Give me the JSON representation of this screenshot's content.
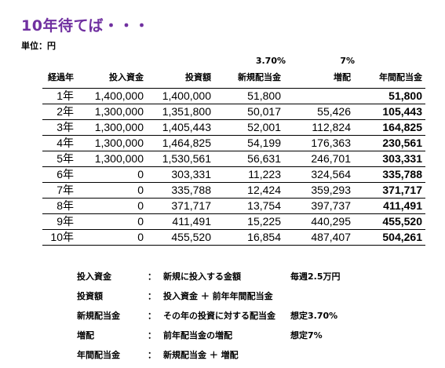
{
  "title": "10年待てば・・・",
  "unit": "単位：円",
  "rates": {
    "new_dividend_rate": "3.70%",
    "increase_rate": "7%"
  },
  "table": {
    "headers": [
      "経過年",
      "投入資金",
      "投資額",
      "新規配当金",
      "増配",
      "年間配当金"
    ],
    "rows": [
      [
        "1年",
        "1,400,000",
        "1,400,000",
        "51,800",
        "",
        "51,800"
      ],
      [
        "2年",
        "1,300,000",
        "1,351,800",
        "50,017",
        "55,426",
        "105,443"
      ],
      [
        "3年",
        "1,300,000",
        "1,405,443",
        "52,001",
        "112,824",
        "164,825"
      ],
      [
        "4年",
        "1,300,000",
        "1,464,825",
        "54,199",
        "176,363",
        "230,561"
      ],
      [
        "5年",
        "1,300,000",
        "1,530,561",
        "56,631",
        "246,701",
        "303,331"
      ],
      [
        "6年",
        "0",
        "303,331",
        "11,223",
        "324,564",
        "335,788"
      ],
      [
        "7年",
        "0",
        "335,788",
        "12,424",
        "359,293",
        "371,717"
      ],
      [
        "8年",
        "0",
        "371,717",
        "13,754",
        "397,737",
        "411,491"
      ],
      [
        "9年",
        "0",
        "411,491",
        "15,225",
        "440,295",
        "455,520"
      ],
      [
        "10年",
        "0",
        "455,520",
        "16,854",
        "487,407",
        "504,261"
      ]
    ]
  },
  "notes": [
    {
      "term": "投入資金",
      "sep": "：",
      "desc": "新規に投入する金額",
      "extra": "毎週2.5万円"
    },
    {
      "term": "投資額",
      "sep": "：",
      "desc": "投入資金 ＋ 前年年間配当金",
      "extra": ""
    },
    {
      "term": "新規配当金",
      "sep": "：",
      "desc": "その年の投資に対する配当金",
      "extra": "想定3.70%"
    },
    {
      "term": "増配",
      "sep": "：",
      "desc": "前年配当金の増配",
      "extra": "想定7%"
    },
    {
      "term": "年間配当金",
      "sep": "：",
      "desc": "新規配当金 ＋ 増配",
      "extra": ""
    }
  ]
}
